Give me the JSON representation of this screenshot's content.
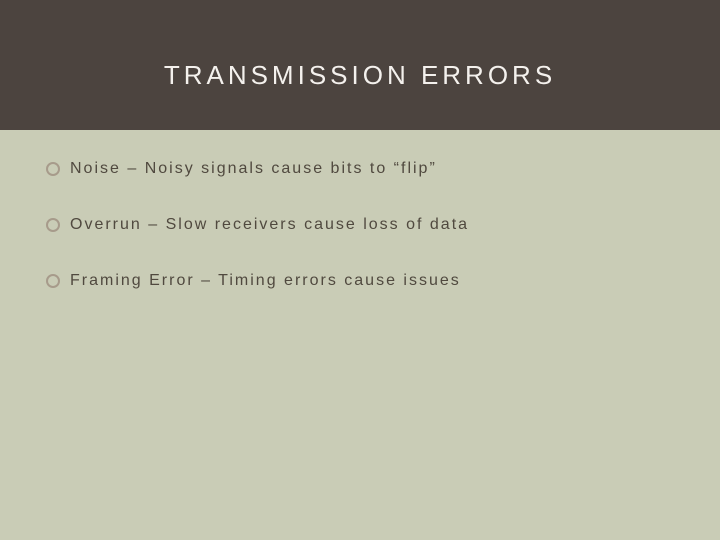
{
  "slide": {
    "title": "TRANSMISSION ERRORS",
    "title_color": "#f4f1ed",
    "title_fontsize": 26,
    "title_letter_spacing": 4,
    "header_bg": "#4c443f",
    "body_bg": "#c9ccb6",
    "bullet_border_color": "#a79b8b",
    "bullet_text_color": "#50493f",
    "bullet_fontsize": 16,
    "bullet_letter_spacing": 2,
    "items": [
      {
        "text": "Noise – Noisy signals cause bits to “flip”"
      },
      {
        "text": "Overrun – Slow receivers cause loss of data"
      },
      {
        "text": "Framing Error – Timing errors cause issues"
      }
    ]
  }
}
